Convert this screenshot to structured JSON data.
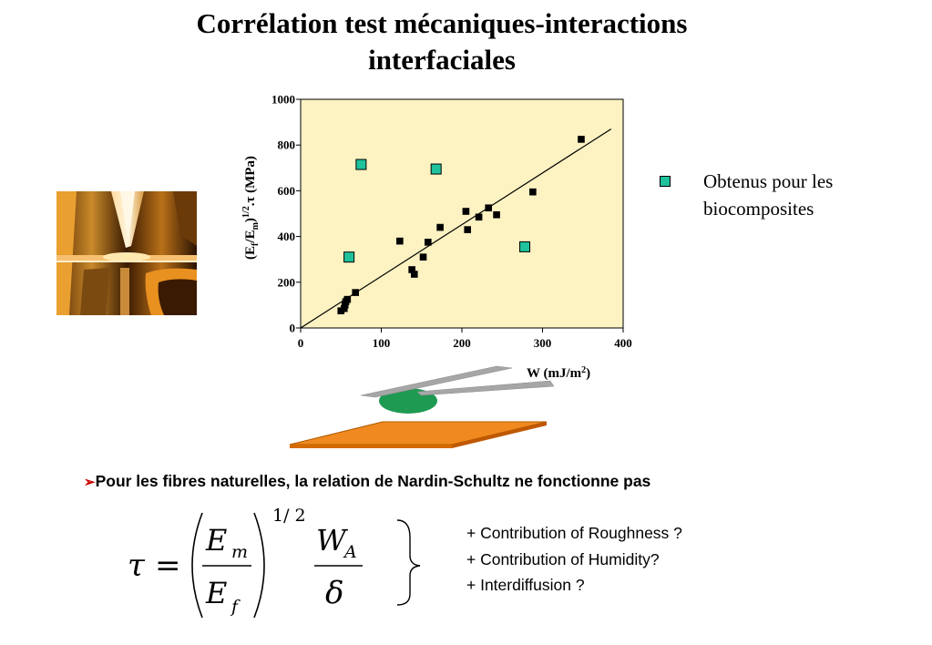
{
  "slide": {
    "title": "Corrélation test mécaniques-interactions interfaciales",
    "legend_label": "Obtenus pour les biocomposites",
    "bullet_text": "Pour les fibres naturelles,  la relation de Nardin-Schultz ne fonctionne pas",
    "formula": {
      "tau": "τ",
      "equals": "=",
      "num_main": "E",
      "num_sub": "m",
      "den_main": "E",
      "den_sub": "f",
      "exponent": "1/ 2",
      "wa_main": "W",
      "wa_sub": "A",
      "delta": "δ"
    },
    "contributions": [
      "+  Contribution of Roughness ?",
      "+  Contribution of Humidity?",
      "+ Interdiffusion ?"
    ]
  },
  "chart_data": {
    "type": "scatter",
    "xlabel": "W   (mJ/m²)",
    "ylabel": "(Ef/Em)1/2.τ     (MPa)",
    "xlim": [
      0,
      400
    ],
    "ylim": [
      0,
      1000
    ],
    "xticks": [
      "0",
      "100",
      "200",
      "300",
      "400"
    ],
    "yticks": [
      "0",
      "200",
      "400",
      "600",
      "800",
      "1000"
    ],
    "plot_background": "#fcf2c2",
    "series": [
      {
        "marker": "small-black-square",
        "color": "#000000",
        "points": [
          [
            50,
            75
          ],
          [
            54,
            85
          ],
          [
            55,
            100
          ],
          [
            56,
            115
          ],
          [
            58,
            125
          ],
          [
            68,
            155
          ],
          [
            123,
            380
          ],
          [
            138,
            255
          ],
          [
            141,
            235
          ],
          [
            152,
            310
          ],
          [
            158,
            375
          ],
          [
            173,
            440
          ],
          [
            205,
            510
          ],
          [
            207,
            430
          ],
          [
            221,
            485
          ],
          [
            233,
            525
          ],
          [
            243,
            495
          ],
          [
            288,
            595
          ],
          [
            348,
            825
          ]
        ]
      },
      {
        "name": "Obtenus pour les biocomposites",
        "marker": "large-teal-square",
        "color": "#1fc29c",
        "points": [
          [
            60,
            310
          ],
          [
            75,
            715
          ],
          [
            168,
            695
          ],
          [
            278,
            355
          ]
        ]
      }
    ],
    "fit_line": [
      [
        0,
        0
      ],
      [
        385,
        870
      ]
    ]
  }
}
